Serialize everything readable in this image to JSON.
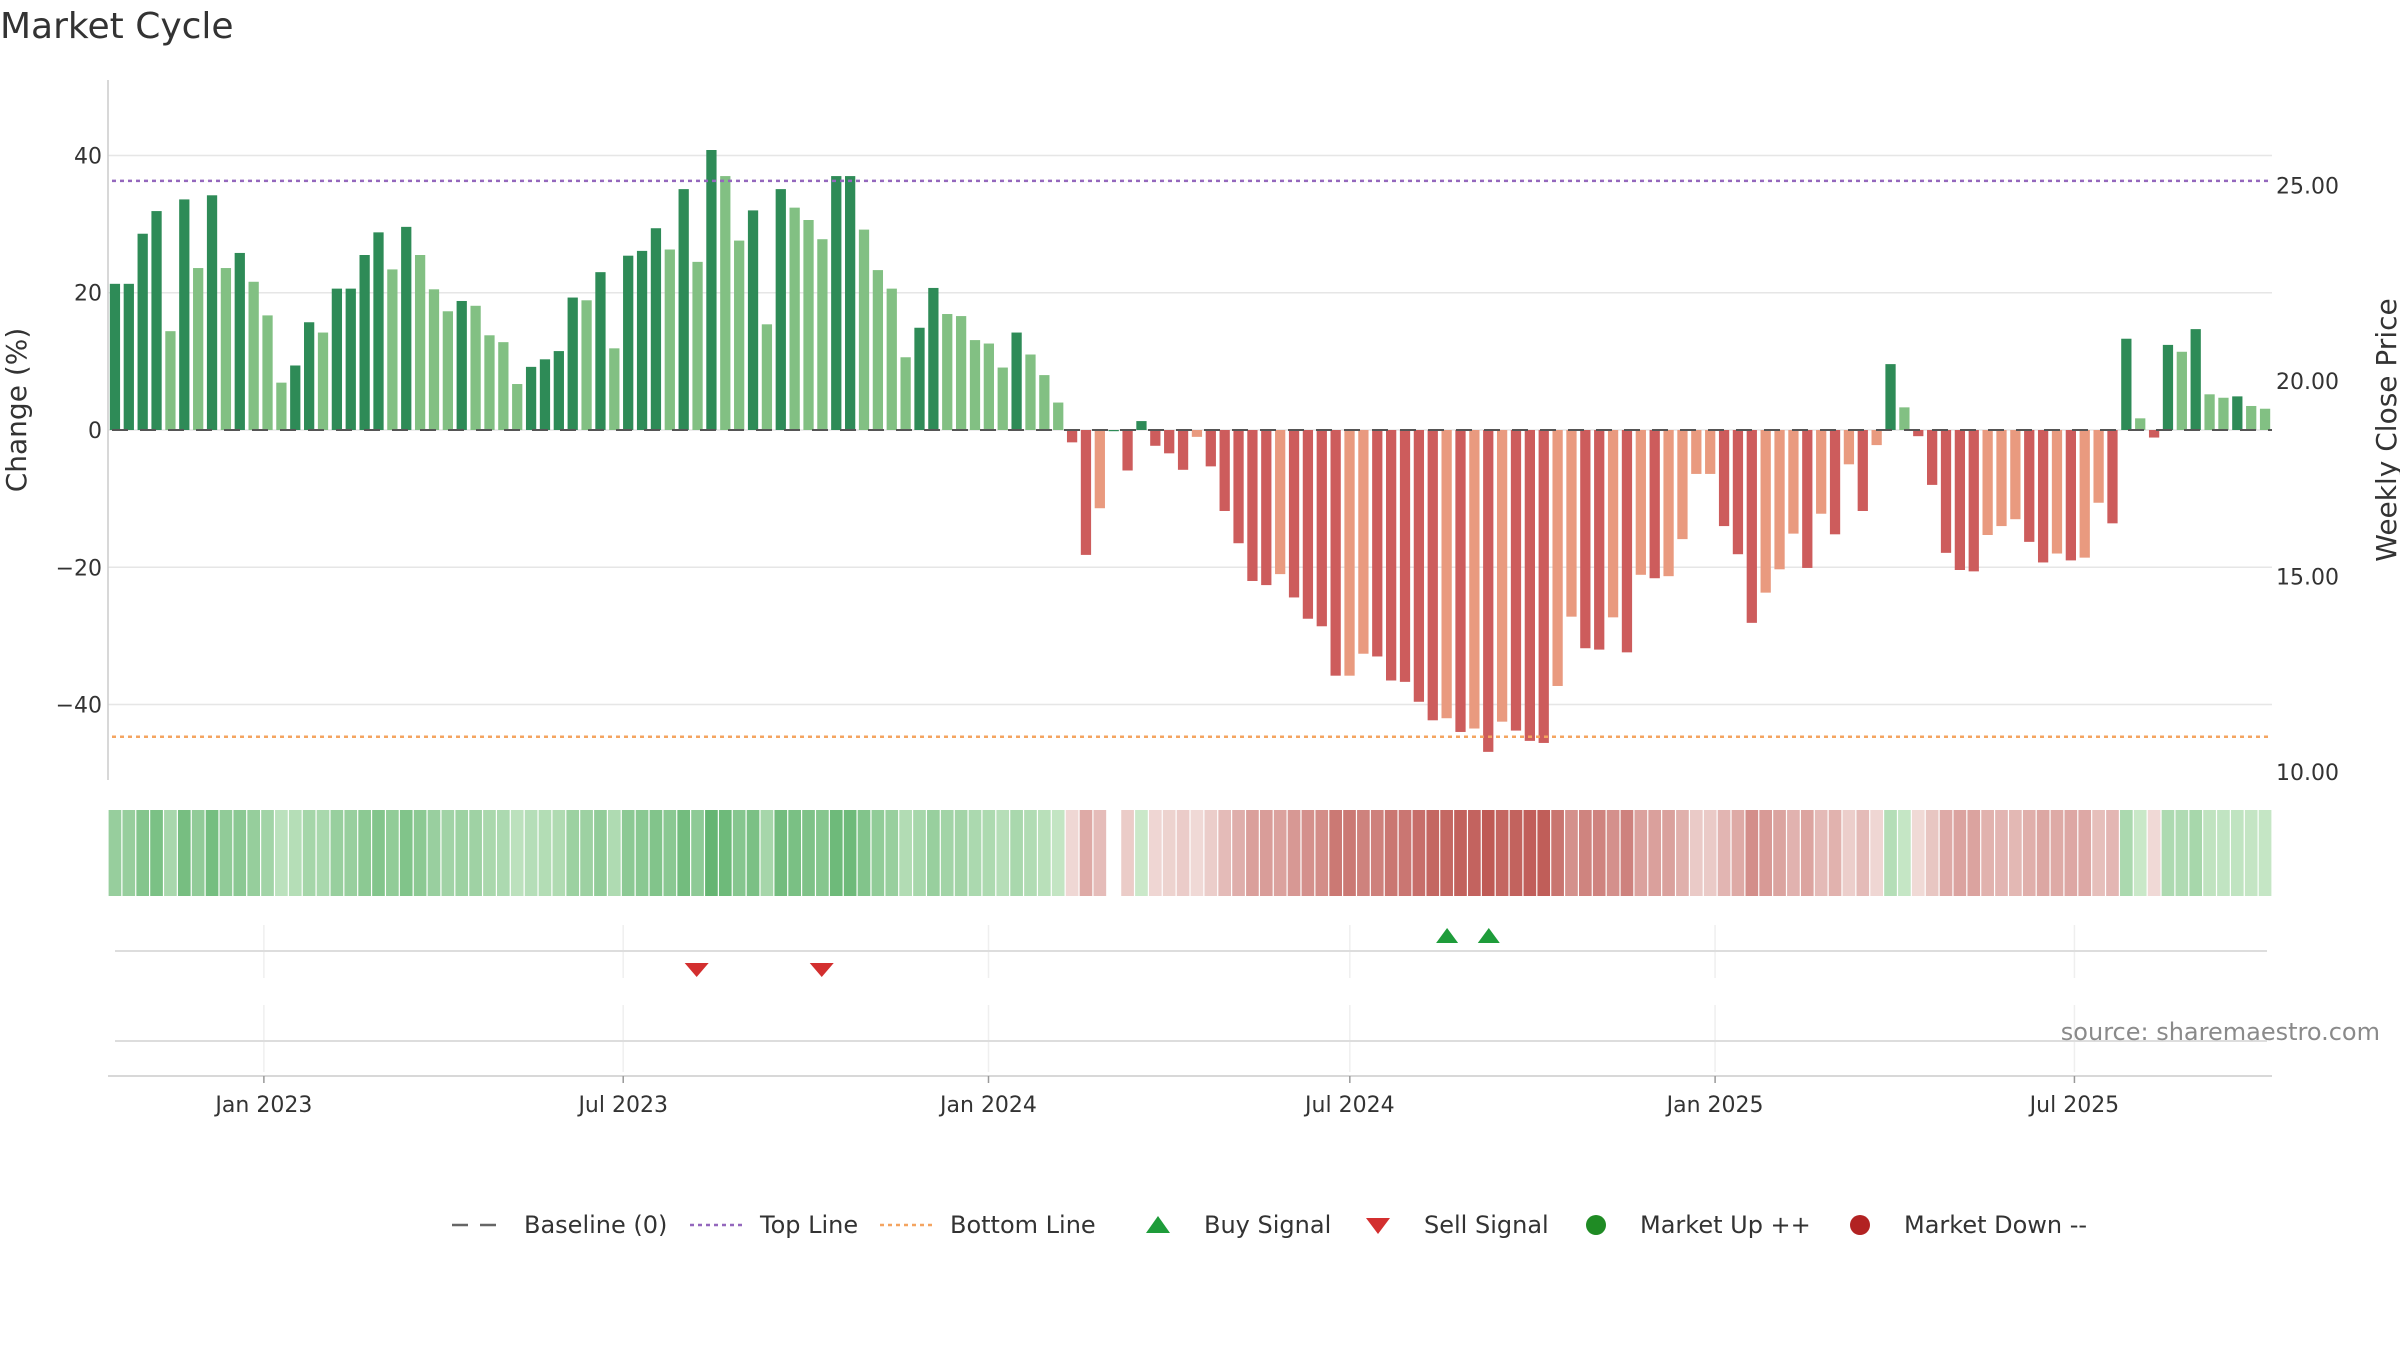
{
  "title": "Market Cycle",
  "y_axis_label": "Change (%)",
  "y2_axis_label": "Weekly Close Price",
  "source": "source: sharemaestro.com",
  "legend": [
    {
      "key": "baseline",
      "label": "Baseline (0)",
      "marker": "dash-line",
      "color": "#666666"
    },
    {
      "key": "top",
      "label": "Top Line",
      "marker": "dotted-line",
      "color": "#9467bd"
    },
    {
      "key": "bottom",
      "label": "Bottom Line",
      "marker": "dotted-line",
      "color": "#f4a460"
    },
    {
      "key": "buy",
      "label": "Buy Signal",
      "marker": "triangle-up",
      "color": "#1e9c3a"
    },
    {
      "key": "sell",
      "label": "Sell Signal",
      "marker": "triangle-down",
      "color": "#d32f2f"
    },
    {
      "key": "up",
      "label": "Market Up ++",
      "marker": "circle",
      "color": "#1f8b24"
    },
    {
      "key": "down",
      "label": "Market Down --",
      "marker": "circle",
      "color": "#b22222"
    }
  ],
  "chart_data": {
    "type": "bar",
    "title": "Market Cycle",
    "x_start": "2022-10-17",
    "x_interval": "weekly",
    "x_ticks": [
      "Jan 2023",
      "Jul 2023",
      "Jan 2024",
      "Jul 2024",
      "Jan 2025",
      "Jul 2025"
    ],
    "x_tick_dates": [
      "2023-01-01",
      "2023-07-01",
      "2024-01-01",
      "2024-07-01",
      "2025-01-01",
      "2025-07-01"
    ],
    "ylabel": "Change (%)",
    "ylim": [
      -51,
      51
    ],
    "yticks": [
      -40,
      -20,
      0,
      20,
      40
    ],
    "y2label": "Weekly Close Price",
    "y2lim": [
      9.8,
      27.7
    ],
    "y2ticks": [
      "10.00",
      "15.00",
      "20.00",
      "25.00"
    ],
    "top_line": 36.3,
    "bottom_line": -44.7,
    "grid": true,
    "legend_position": "bottom",
    "values": [
      21.3,
      21.3,
      28.6,
      31.9,
      14.4,
      33.6,
      23.6,
      34.2,
      23.6,
      25.8,
      21.6,
      16.7,
      6.9,
      9.4,
      15.7,
      14.2,
      20.6,
      20.6,
      25.5,
      28.8,
      23.4,
      29.6,
      25.5,
      20.5,
      17.3,
      18.8,
      18.1,
      13.8,
      12.8,
      6.7,
      9.2,
      10.3,
      11.5,
      19.3,
      18.9,
      23.0,
      11.9,
      25.4,
      26.1,
      29.4,
      26.3,
      35.1,
      24.5,
      40.8,
      37.0,
      27.6,
      32.0,
      15.4,
      35.1,
      32.4,
      30.6,
      27.8,
      37.0,
      37.0,
      29.2,
      23.3,
      20.6,
      10.6,
      14.9,
      20.7,
      16.9,
      16.6,
      13.1,
      12.6,
      9.1,
      14.2,
      11.0,
      8.0,
      4.0,
      -1.8,
      -18.2,
      -11.4,
      0.0,
      -5.9,
      1.3,
      -2.3,
      -3.4,
      -5.8,
      -1.0,
      -5.3,
      -11.8,
      -16.5,
      -22.0,
      -22.6,
      -21.0,
      -24.4,
      -27.5,
      -28.6,
      -35.8,
      -35.8,
      -32.6,
      -33.0,
      -36.5,
      -36.7,
      -39.6,
      -42.3,
      -42.0,
      -44.0,
      -43.5,
      -46.9,
      -42.5,
      -43.8,
      -45.3,
      -45.6,
      -37.3,
      -27.2,
      -31.8,
      -32.0,
      -27.3,
      -32.4,
      -21.1,
      -21.6,
      -21.3,
      -15.9,
      -6.4,
      -6.4,
      -14.0,
      -18.1,
      -28.1,
      -23.7,
      -20.3,
      -15.1,
      -20.1,
      -12.2,
      -15.2,
      -5.0,
      -11.8,
      -2.2,
      9.6,
      3.3,
      -0.9,
      -8.0,
      -17.9,
      -20.4,
      -20.6,
      -15.3,
      -14.0,
      -13.0,
      -16.3,
      -19.3,
      -18.0,
      -19.0,
      -18.6,
      -10.6,
      -13.6,
      13.3,
      1.7,
      -1.1,
      12.4,
      11.4,
      14.7,
      5.2,
      4.7,
      4.9,
      3.5,
      3.1
    ],
    "signals": {
      "buy": [
        "2024-08-19",
        "2024-09-09"
      ],
      "sell": [
        "2023-08-07",
        "2023-10-09"
      ]
    }
  }
}
